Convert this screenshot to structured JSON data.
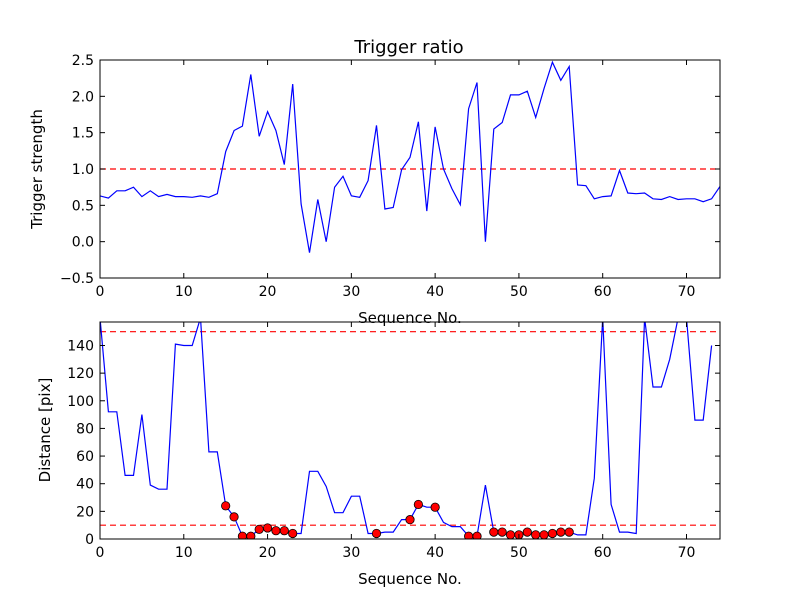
{
  "chart_data": [
    {
      "type": "line",
      "title": "Trigger ratio",
      "xlabel": "Sequence No.",
      "ylabel": "Trigger strength",
      "xlim": [
        0,
        74
      ],
      "ylim": [
        -0.5,
        2.5
      ],
      "xticks": [
        "0",
        "10",
        "20",
        "30",
        "40",
        "50",
        "60",
        "70"
      ],
      "yticks": [
        "−0.5",
        "0.0",
        "0.5",
        "1.0",
        "1.5",
        "2.0",
        "2.5"
      ],
      "grid": false,
      "line_color": "#0000ff",
      "threshold_color": "#ff0000",
      "thresholds": [
        1.0
      ],
      "series": [
        {
          "x": [
            0,
            1,
            2,
            3,
            4,
            5,
            6,
            7,
            8,
            9,
            10,
            11,
            12,
            13,
            14,
            15,
            16,
            17,
            18,
            19,
            20,
            21,
            22,
            23,
            24,
            25,
            26,
            27,
            28,
            29,
            30,
            31,
            32,
            33,
            34,
            35,
            36,
            37,
            38,
            39,
            40,
            41,
            42,
            43,
            44,
            45,
            46,
            47,
            48,
            49,
            50,
            51,
            52,
            53,
            54,
            55,
            56,
            57,
            58,
            59,
            60,
            61,
            62,
            63,
            64,
            65,
            66,
            67,
            68,
            69,
            70,
            71,
            72,
            73,
            74
          ],
          "y": [
            0.63,
            0.6,
            0.7,
            0.7,
            0.75,
            0.62,
            0.7,
            0.62,
            0.65,
            0.62,
            0.62,
            0.61,
            0.63,
            0.61,
            0.66,
            1.24,
            1.53,
            1.59,
            2.3,
            1.45,
            1.79,
            1.53,
            1.06,
            2.17,
            0.52,
            -0.15,
            0.58,
            0.0,
            0.75,
            0.9,
            0.63,
            0.61,
            0.84,
            1.6,
            0.45,
            0.47,
            0.99,
            1.16,
            1.65,
            0.42,
            1.58,
            1.0,
            0.73,
            0.51,
            1.83,
            2.19,
            0.0,
            1.55,
            1.64,
            2.02,
            2.02,
            2.07,
            1.71,
            2.11,
            2.47,
            2.22,
            2.41,
            0.78,
            0.77,
            0.59,
            0.62,
            0.63,
            0.98,
            0.67,
            0.66,
            0.67,
            0.59,
            0.58,
            0.62,
            0.58,
            0.59,
            0.59,
            0.55,
            0.59,
            0.76
          ]
        }
      ]
    },
    {
      "type": "line",
      "title": "",
      "xlabel": "Sequence No.",
      "ylabel": "Distance [pix]",
      "xlim": [
        0,
        74
      ],
      "ylim": [
        0,
        157
      ],
      "xticks": [
        "0",
        "10",
        "20",
        "30",
        "40",
        "50",
        "60",
        "70"
      ],
      "yticks": [
        "0",
        "20",
        "40",
        "60",
        "80",
        "100",
        "120",
        "140"
      ],
      "grid": false,
      "line_color": "#0000ff",
      "threshold_color": "#ff0000",
      "marker_color": "#ff0000",
      "thresholds": [
        10,
        150
      ],
      "series": [
        {
          "x": [
            0,
            1,
            2,
            3,
            4,
            5,
            6,
            7,
            8,
            9,
            10,
            11,
            12,
            13,
            14,
            15,
            16,
            17,
            18,
            19,
            20,
            21,
            22,
            23,
            24,
            25,
            26,
            27,
            28,
            29,
            30,
            31,
            32,
            33,
            34,
            35,
            36,
            37,
            38,
            39,
            40,
            41,
            42,
            43,
            44,
            45,
            46,
            47,
            48,
            49,
            50,
            51,
            52,
            53,
            54,
            55,
            56,
            57,
            58,
            59,
            60,
            61,
            62,
            63,
            64,
            65,
            66,
            67,
            68,
            69,
            70,
            71,
            72,
            73
          ],
          "y": [
            160,
            92,
            92,
            46,
            46,
            90,
            39,
            36,
            36,
            141,
            140,
            140,
            160,
            63,
            63,
            24,
            16,
            2,
            2,
            7,
            8,
            6,
            6,
            4,
            4,
            49,
            49,
            38,
            19,
            19,
            31,
            31,
            4,
            4,
            5,
            5,
            14,
            14,
            25,
            23,
            23,
            12,
            9,
            9,
            2,
            2,
            39,
            5,
            5,
            3,
            3,
            5,
            3,
            3,
            4,
            5,
            5,
            3,
            3,
            44,
            160,
            25,
            5,
            5,
            4,
            160,
            110,
            110,
            130,
            160,
            160,
            86,
            86,
            140
          ]
        },
        {
          "name": "markers",
          "x": [
            15,
            16,
            17,
            18,
            19,
            20,
            21,
            22,
            23,
            33,
            37,
            38,
            40,
            44,
            45,
            47,
            48,
            49,
            50,
            51,
            52,
            53,
            54,
            55,
            56
          ],
          "y": [
            24,
            16,
            2,
            2,
            7,
            8,
            6,
            6,
            4,
            4,
            14,
            25,
            23,
            2,
            2,
            5,
            5,
            3,
            3,
            5,
            3,
            3,
            4,
            5,
            5
          ]
        }
      ]
    }
  ]
}
